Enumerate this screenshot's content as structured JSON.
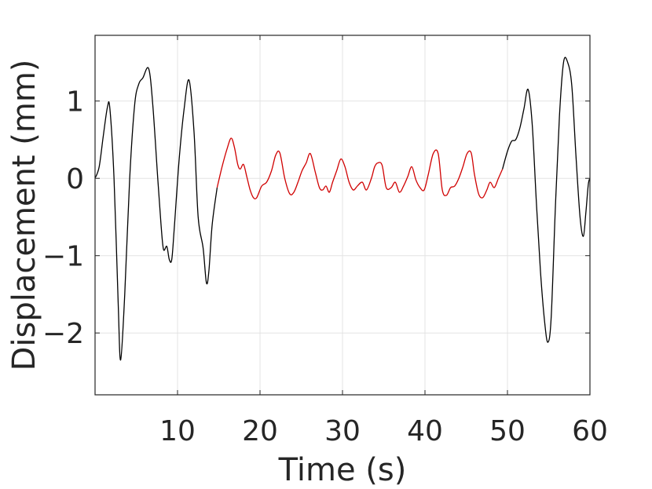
{
  "chart_data": {
    "type": "line",
    "title": "",
    "xlabel": "Time (s)",
    "ylabel": "Displacement (mm)",
    "xlim": [
      0,
      60
    ],
    "ylim": [
      -2.8,
      1.85
    ],
    "xticks": [
      10,
      20,
      30,
      40,
      50,
      60
    ],
    "yticks": [
      1,
      0,
      -1,
      -2
    ],
    "ytick_labels": [
      "1",
      "0",
      "−1",
      "−2"
    ],
    "grid": true,
    "series": [
      {
        "color": "#000000",
        "segment": "start",
        "x": [
          0,
          0.5,
          1,
          1.5,
          1.8,
          2.3,
          2.8,
          3.1,
          3.6,
          4.2,
          4.8,
          5.3,
          5.8,
          6.5,
          7.0,
          7.6,
          8.0,
          8.3,
          8.7,
          9.0,
          9.3,
          9.6,
          10.2,
          10.8,
          11.4,
          12.0,
          12.5,
          13.1,
          13.5,
          13.8,
          14.2,
          14.8
        ],
        "y": [
          0,
          0.15,
          0.55,
          0.92,
          0.9,
          0.0,
          -1.6,
          -2.35,
          -1.5,
          0.0,
          0.95,
          1.22,
          1.3,
          1.42,
          0.95,
          0.0,
          -0.6,
          -0.92,
          -0.88,
          -1.05,
          -1.05,
          -0.65,
          0.25,
          0.9,
          1.27,
          0.6,
          -0.5,
          -0.9,
          -1.35,
          -1.2,
          -0.6,
          -0.12
        ]
      },
      {
        "color": "#d00000",
        "segment": "middle",
        "x": [
          14.8,
          15.4,
          16.0,
          16.5,
          16.9,
          17.3,
          17.6,
          18.0,
          18.4,
          18.8,
          19.2,
          19.6,
          20.2,
          20.8,
          21.4,
          21.9,
          22.4,
          23.0,
          23.6,
          24.1,
          24.6,
          25.1,
          25.6,
          26.1,
          26.7,
          27.2,
          27.6,
          28.0,
          28.4,
          28.8,
          29.3,
          29.8,
          30.3,
          30.8,
          31.3,
          31.8,
          32.4,
          32.9,
          33.5,
          33.9,
          34.3,
          34.8,
          35.3,
          35.9,
          36.4,
          36.9,
          37.4,
          37.9,
          38.4,
          38.9,
          39.4,
          39.9,
          40.4,
          41.0,
          41.6,
          42.1,
          42.6,
          43.1,
          43.6,
          44.1,
          44.6,
          45.1,
          45.6,
          46.0,
          46.5,
          47.0,
          47.5,
          47.9,
          48.4,
          48.9,
          49.4
        ],
        "y": [
          -0.12,
          0.15,
          0.38,
          0.52,
          0.4,
          0.18,
          0.12,
          0.18,
          0.02,
          -0.15,
          -0.25,
          -0.25,
          -0.1,
          -0.05,
          0.1,
          0.3,
          0.33,
          0.0,
          -0.2,
          -0.18,
          -0.05,
          0.1,
          0.2,
          0.32,
          0.08,
          -0.12,
          -0.15,
          -0.1,
          -0.18,
          -0.05,
          0.1,
          0.25,
          0.15,
          -0.05,
          -0.15,
          -0.1,
          -0.05,
          -0.15,
          0.0,
          0.15,
          0.2,
          0.17,
          -0.12,
          -0.12,
          -0.05,
          -0.18,
          -0.1,
          0.02,
          0.15,
          -0.02,
          -0.12,
          -0.15,
          0.05,
          0.32,
          0.32,
          -0.15,
          -0.22,
          -0.12,
          -0.1,
          0.0,
          0.15,
          0.32,
          0.33,
          0.05,
          -0.2,
          -0.25,
          -0.15,
          -0.05,
          -0.12,
          0.0,
          0.12
        ]
      },
      {
        "color": "#000000",
        "segment": "end",
        "x": [
          49.4,
          50.0,
          50.5,
          51.0,
          51.5,
          52.0,
          52.5,
          53.0,
          53.5,
          54.0,
          54.5,
          54.9,
          55.3,
          55.8,
          56.3,
          56.8,
          57.3,
          57.8,
          58.3,
          58.8,
          59.2,
          59.5,
          59.8,
          60.0
        ],
        "y": [
          0.12,
          0.35,
          0.48,
          0.5,
          0.65,
          0.9,
          1.15,
          0.7,
          -0.3,
          -1.2,
          -1.85,
          -2.12,
          -1.8,
          -0.4,
          0.8,
          1.5,
          1.5,
          1.2,
          0.3,
          -0.5,
          -0.75,
          -0.45,
          -0.08,
          0.0
        ]
      }
    ]
  }
}
